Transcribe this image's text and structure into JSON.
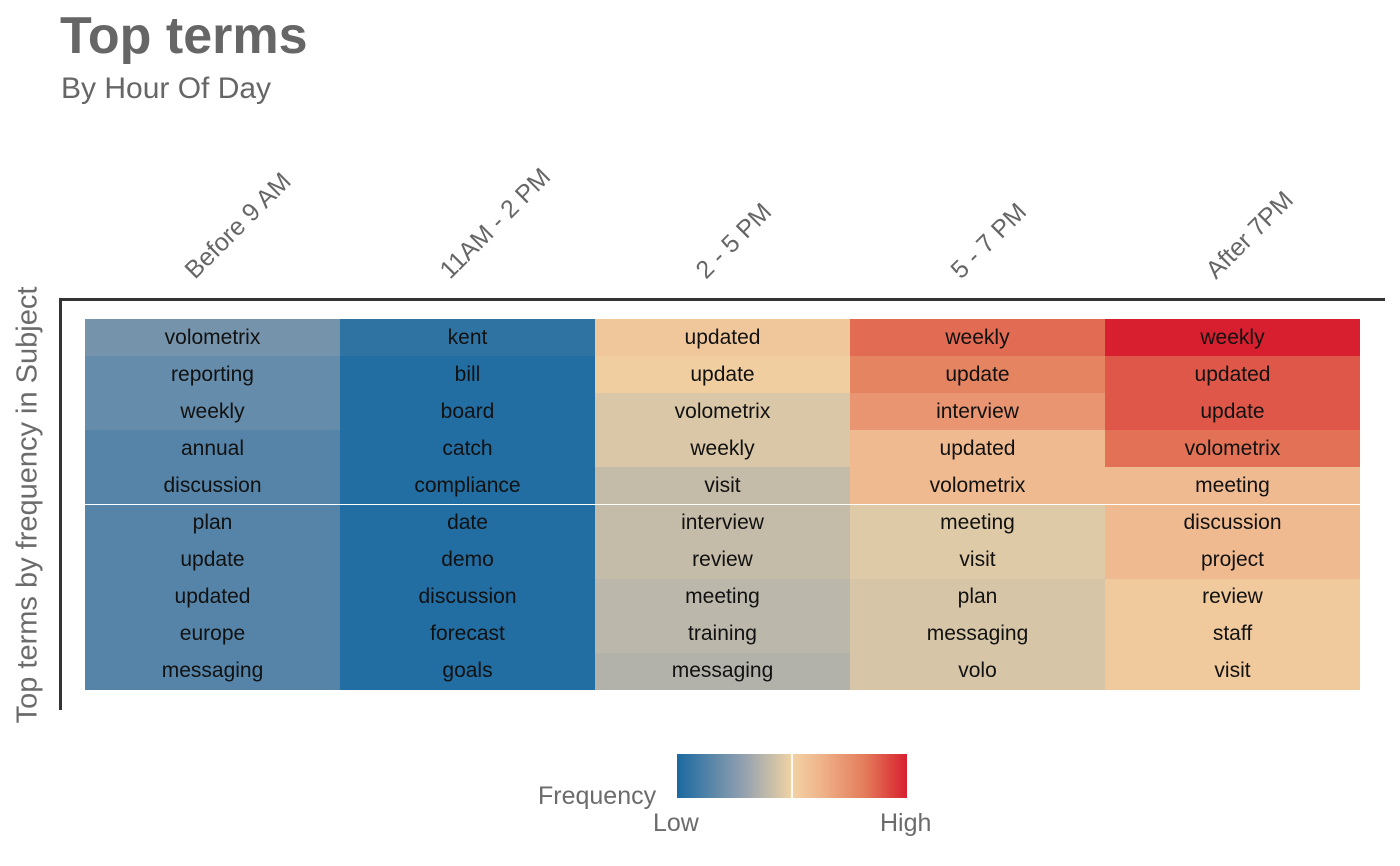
{
  "chart_data": {
    "type": "heatmap",
    "title": "Top terms",
    "subtitle": "By Hour Of Day",
    "ylabel": "Top terms by frequency in Subject",
    "columns": [
      "Before 9 AM",
      "11AM - 2 PM",
      "2 - 5 PM",
      "5 - 7 PM",
      "After 7PM"
    ],
    "terms": [
      [
        "volometrix",
        "reporting",
        "weekly",
        "annual",
        "discussion",
        "plan",
        "update",
        "updated",
        "europe",
        "messaging"
      ],
      [
        "kent",
        "bill",
        "board",
        "catch",
        "compliance",
        "date",
        "demo",
        "discussion",
        "forecast",
        "goals"
      ],
      [
        "updated",
        "update",
        "volometrix",
        "weekly",
        "visit",
        "interview",
        "review",
        "meeting",
        "training",
        "messaging"
      ],
      [
        "weekly",
        "update",
        "interview",
        "updated",
        "volometrix",
        "meeting",
        "visit",
        "plan",
        "messaging",
        "volo"
      ],
      [
        "weekly",
        "updated",
        "update",
        "volometrix",
        "meeting",
        "discussion",
        "project",
        "review",
        "staff",
        "visit"
      ]
    ],
    "frequency": [
      [
        0.22,
        0.18,
        0.18,
        0.14,
        0.14,
        0.14,
        0.14,
        0.14,
        0.14,
        0.14
      ],
      [
        0.05,
        0.02,
        0.02,
        0.02,
        0.02,
        0.02,
        0.02,
        0.02,
        0.02,
        0.02
      ],
      [
        0.55,
        0.52,
        0.45,
        0.45,
        0.4,
        0.4,
        0.4,
        0.38,
        0.38,
        0.36
      ],
      [
        0.85,
        0.79,
        0.73,
        0.6,
        0.6,
        0.46,
        0.46,
        0.44,
        0.44,
        0.44
      ],
      [
        1.0,
        0.89,
        0.89,
        0.84,
        0.6,
        0.6,
        0.6,
        0.54,
        0.54,
        0.54
      ]
    ],
    "legend": {
      "title": "Frequency",
      "low_label": "Low",
      "high_label": "High",
      "colors": [
        "#1a69a0",
        "#8f9faf",
        "#f0d3a4",
        "#f0b58c",
        "#e37b5a",
        "#d81f2f"
      ]
    }
  }
}
